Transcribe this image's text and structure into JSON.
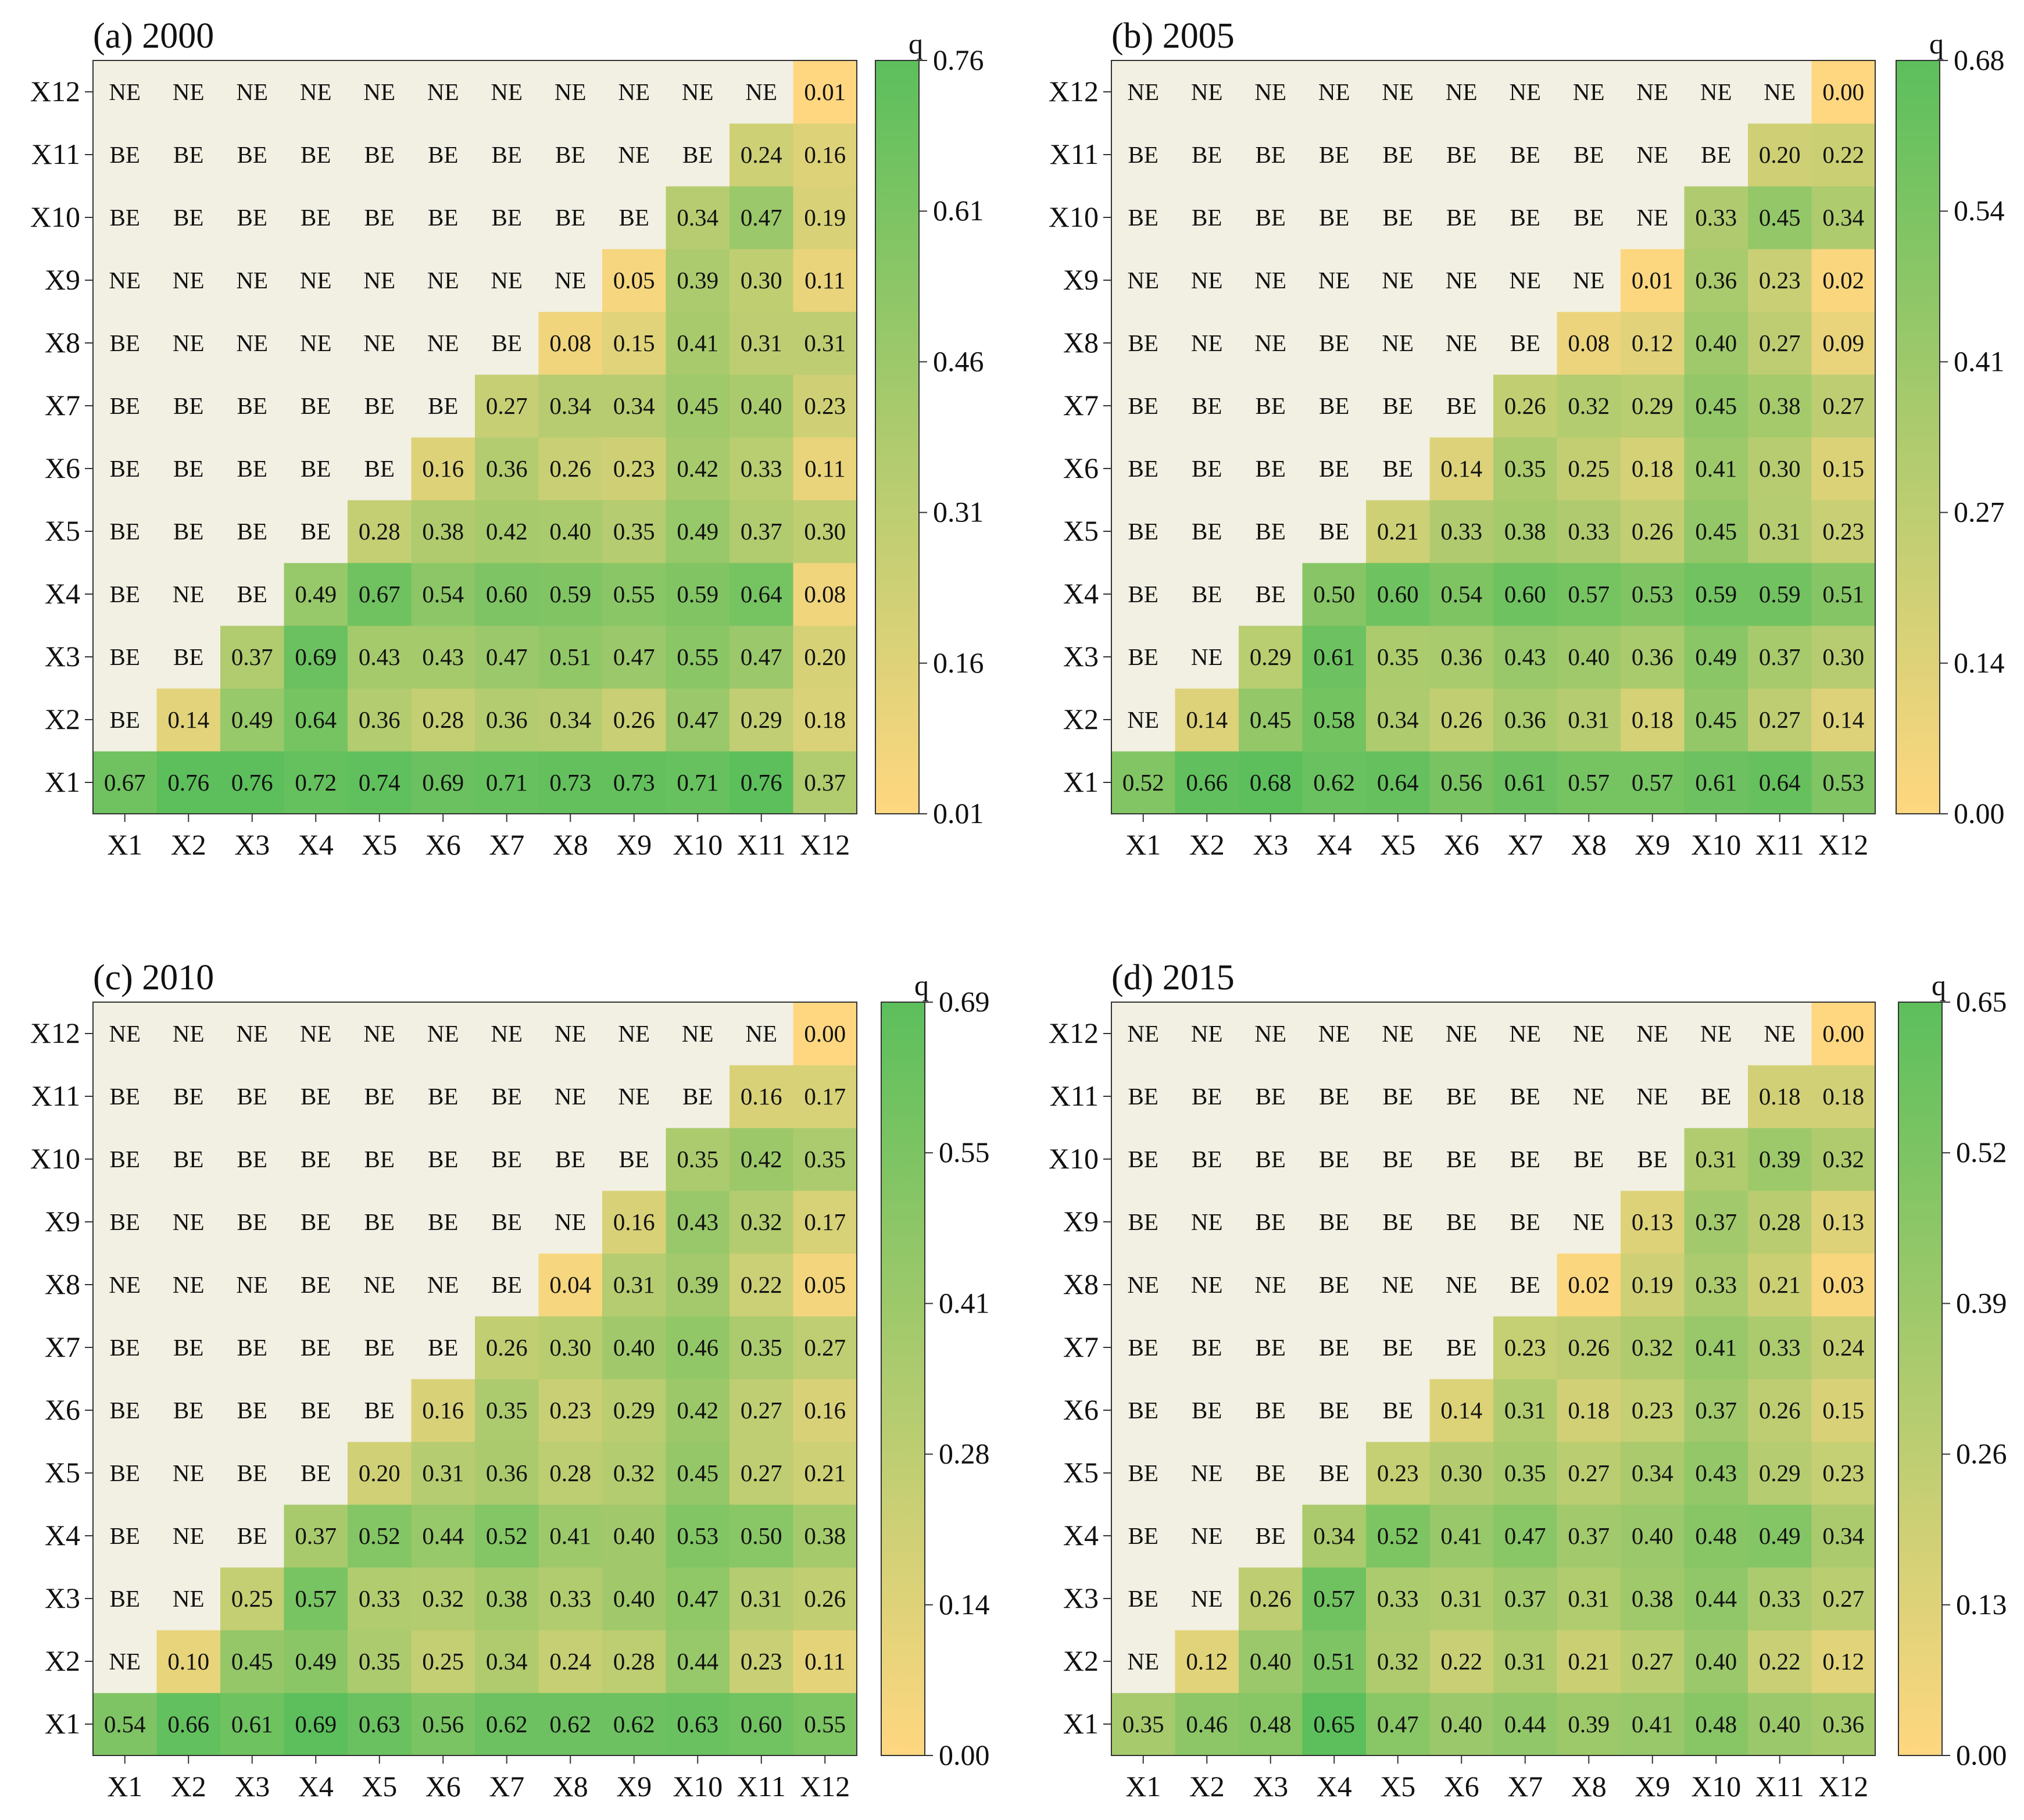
{
  "colorbar_label": "q",
  "colors": {
    "low": "#ffd780",
    "high": "#5cbf5c",
    "background": "#f2f0e3",
    "text": "#111111"
  },
  "chart_data": [
    {
      "type": "heatmap",
      "title": "(a) 2000",
      "x_categories": [
        "X1",
        "X2",
        "X3",
        "X4",
        "X5",
        "X6",
        "X7",
        "X8",
        "X9",
        "X10",
        "X11",
        "X12"
      ],
      "y_categories": [
        "X1",
        "X2",
        "X3",
        "X4",
        "X5",
        "X6",
        "X7",
        "X8",
        "X9",
        "X10",
        "X11",
        "X12"
      ],
      "colorbar": {
        "label": "q",
        "min": 0.01,
        "max": 0.76,
        "ticks": [
          "0.01",
          "0.16",
          "0.31",
          "0.46",
          "0.61",
          "0.76"
        ]
      },
      "rows": [
        [
          "0.67",
          "0.76",
          "0.76",
          "0.72",
          "0.74",
          "0.69",
          "0.71",
          "0.73",
          "0.73",
          "0.71",
          "0.76",
          "0.37"
        ],
        [
          "BE",
          "0.14",
          "0.49",
          "0.64",
          "0.36",
          "0.28",
          "0.36",
          "0.34",
          "0.26",
          "0.47",
          "0.29",
          "0.18"
        ],
        [
          "BE",
          "BE",
          "0.37",
          "0.69",
          "0.43",
          "0.43",
          "0.47",
          "0.51",
          "0.47",
          "0.55",
          "0.47",
          "0.20"
        ],
        [
          "BE",
          "NE",
          "BE",
          "0.49",
          "0.67",
          "0.54",
          "0.60",
          "0.59",
          "0.55",
          "0.59",
          "0.64",
          "0.08"
        ],
        [
          "BE",
          "BE",
          "BE",
          "BE",
          "0.28",
          "0.38",
          "0.42",
          "0.40",
          "0.35",
          "0.49",
          "0.37",
          "0.30"
        ],
        [
          "BE",
          "BE",
          "BE",
          "BE",
          "BE",
          "0.16",
          "0.36",
          "0.26",
          "0.23",
          "0.42",
          "0.33",
          "0.11"
        ],
        [
          "BE",
          "BE",
          "BE",
          "BE",
          "BE",
          "BE",
          "0.27",
          "0.34",
          "0.34",
          "0.45",
          "0.40",
          "0.23"
        ],
        [
          "BE",
          "NE",
          "NE",
          "NE",
          "NE",
          "NE",
          "BE",
          "0.08",
          "0.15",
          "0.41",
          "0.31",
          "0.31"
        ],
        [
          "NE",
          "NE",
          "NE",
          "NE",
          "NE",
          "NE",
          "NE",
          "NE",
          "0.05",
          "0.39",
          "0.30",
          "0.11"
        ],
        [
          "BE",
          "BE",
          "BE",
          "BE",
          "BE",
          "BE",
          "BE",
          "BE",
          "BE",
          "0.34",
          "0.47",
          "0.19"
        ],
        [
          "BE",
          "BE",
          "BE",
          "BE",
          "BE",
          "BE",
          "BE",
          "BE",
          "NE",
          "BE",
          "0.24",
          "0.16"
        ],
        [
          "NE",
          "NE",
          "NE",
          "NE",
          "NE",
          "NE",
          "NE",
          "NE",
          "NE",
          "NE",
          "NE",
          "0.01"
        ]
      ]
    },
    {
      "type": "heatmap",
      "title": "(b) 2005",
      "x_categories": [
        "X1",
        "X2",
        "X3",
        "X4",
        "X5",
        "X6",
        "X7",
        "X8",
        "X9",
        "X10",
        "X11",
        "X12"
      ],
      "y_categories": [
        "X1",
        "X2",
        "X3",
        "X4",
        "X5",
        "X6",
        "X7",
        "X8",
        "X9",
        "X10",
        "X11",
        "X12"
      ],
      "colorbar": {
        "label": "q",
        "min": 0.0,
        "max": 0.68,
        "ticks": [
          "0.00",
          "0.14",
          "0.27",
          "0.41",
          "0.54",
          "0.68"
        ]
      },
      "rows": [
        [
          "0.52",
          "0.66",
          "0.68",
          "0.62",
          "0.64",
          "0.56",
          "0.61",
          "0.57",
          "0.57",
          "0.61",
          "0.64",
          "0.53"
        ],
        [
          "NE",
          "0.14",
          "0.45",
          "0.58",
          "0.34",
          "0.26",
          "0.36",
          "0.31",
          "0.18",
          "0.45",
          "0.27",
          "0.14"
        ],
        [
          "BE",
          "NE",
          "0.29",
          "0.61",
          "0.35",
          "0.36",
          "0.43",
          "0.40",
          "0.36",
          "0.49",
          "0.37",
          "0.30"
        ],
        [
          "BE",
          "BE",
          "BE",
          "0.50",
          "0.60",
          "0.54",
          "0.60",
          "0.57",
          "0.53",
          "0.59",
          "0.59",
          "0.51"
        ],
        [
          "BE",
          "BE",
          "BE",
          "BE",
          "0.21",
          "0.33",
          "0.38",
          "0.33",
          "0.26",
          "0.45",
          "0.31",
          "0.23"
        ],
        [
          "BE",
          "BE",
          "BE",
          "BE",
          "BE",
          "0.14",
          "0.35",
          "0.25",
          "0.18",
          "0.41",
          "0.30",
          "0.15"
        ],
        [
          "BE",
          "BE",
          "BE",
          "BE",
          "BE",
          "BE",
          "0.26",
          "0.32",
          "0.29",
          "0.45",
          "0.38",
          "0.27"
        ],
        [
          "BE",
          "NE",
          "NE",
          "BE",
          "NE",
          "NE",
          "BE",
          "0.08",
          "0.12",
          "0.40",
          "0.27",
          "0.09"
        ],
        [
          "NE",
          "NE",
          "NE",
          "NE",
          "NE",
          "NE",
          "NE",
          "NE",
          "0.01",
          "0.36",
          "0.23",
          "0.02"
        ],
        [
          "BE",
          "BE",
          "BE",
          "BE",
          "BE",
          "BE",
          "BE",
          "BE",
          "NE",
          "0.33",
          "0.45",
          "0.34"
        ],
        [
          "BE",
          "BE",
          "BE",
          "BE",
          "BE",
          "BE",
          "BE",
          "BE",
          "NE",
          "BE",
          "0.20",
          "0.22"
        ],
        [
          "NE",
          "NE",
          "NE",
          "NE",
          "NE",
          "NE",
          "NE",
          "NE",
          "NE",
          "NE",
          "NE",
          "0.00"
        ]
      ]
    },
    {
      "type": "heatmap",
      "title": "(c) 2010",
      "x_categories": [
        "X1",
        "X2",
        "X3",
        "X4",
        "X5",
        "X6",
        "X7",
        "X8",
        "X9",
        "X10",
        "X11",
        "X12"
      ],
      "y_categories": [
        "X1",
        "X2",
        "X3",
        "X4",
        "X5",
        "X6",
        "X7",
        "X8",
        "X9",
        "X10",
        "X11",
        "X12"
      ],
      "colorbar": {
        "label": "q",
        "min": 0.0,
        "max": 0.69,
        "ticks": [
          "0.00",
          "0.14",
          "0.28",
          "0.41",
          "0.55",
          "0.69"
        ]
      },
      "rows": [
        [
          "0.54",
          "0.66",
          "0.61",
          "0.69",
          "0.63",
          "0.56",
          "0.62",
          "0.62",
          "0.62",
          "0.63",
          "0.60",
          "0.55"
        ],
        [
          "NE",
          "0.10",
          "0.45",
          "0.49",
          "0.35",
          "0.25",
          "0.34",
          "0.24",
          "0.28",
          "0.44",
          "0.23",
          "0.11"
        ],
        [
          "BE",
          "NE",
          "0.25",
          "0.57",
          "0.33",
          "0.32",
          "0.38",
          "0.33",
          "0.40",
          "0.47",
          "0.31",
          "0.26"
        ],
        [
          "BE",
          "NE",
          "BE",
          "0.37",
          "0.52",
          "0.44",
          "0.52",
          "0.41",
          "0.40",
          "0.53",
          "0.50",
          "0.38"
        ],
        [
          "BE",
          "NE",
          "BE",
          "BE",
          "0.20",
          "0.31",
          "0.36",
          "0.28",
          "0.32",
          "0.45",
          "0.27",
          "0.21"
        ],
        [
          "BE",
          "BE",
          "BE",
          "BE",
          "BE",
          "0.16",
          "0.35",
          "0.23",
          "0.29",
          "0.42",
          "0.27",
          "0.16"
        ],
        [
          "BE",
          "BE",
          "BE",
          "BE",
          "BE",
          "BE",
          "0.26",
          "0.30",
          "0.40",
          "0.46",
          "0.35",
          "0.27"
        ],
        [
          "NE",
          "NE",
          "NE",
          "BE",
          "NE",
          "NE",
          "BE",
          "0.04",
          "0.31",
          "0.39",
          "0.22",
          "0.05"
        ],
        [
          "BE",
          "NE",
          "BE",
          "BE",
          "BE",
          "BE",
          "BE",
          "NE",
          "0.16",
          "0.43",
          "0.32",
          "0.17"
        ],
        [
          "BE",
          "BE",
          "BE",
          "BE",
          "BE",
          "BE",
          "BE",
          "BE",
          "BE",
          "0.35",
          "0.42",
          "0.35"
        ],
        [
          "BE",
          "BE",
          "BE",
          "BE",
          "BE",
          "BE",
          "BE",
          "NE",
          "NE",
          "BE",
          "0.16",
          "0.17"
        ],
        [
          "NE",
          "NE",
          "NE",
          "NE",
          "NE",
          "NE",
          "NE",
          "NE",
          "NE",
          "NE",
          "NE",
          "0.00"
        ]
      ]
    },
    {
      "type": "heatmap",
      "title": "(d) 2015",
      "x_categories": [
        "X1",
        "X2",
        "X3",
        "X4",
        "X5",
        "X6",
        "X7",
        "X8",
        "X9",
        "X10",
        "X11",
        "X12"
      ],
      "y_categories": [
        "X1",
        "X2",
        "X3",
        "X4",
        "X5",
        "X6",
        "X7",
        "X8",
        "X9",
        "X10",
        "X11",
        "X12"
      ],
      "colorbar": {
        "label": "q",
        "min": 0.0,
        "max": 0.65,
        "ticks": [
          "0.00",
          "0.13",
          "0.26",
          "0.39",
          "0.52",
          "0.65"
        ]
      },
      "rows": [
        [
          "0.35",
          "0.46",
          "0.48",
          "0.65",
          "0.47",
          "0.40",
          "0.44",
          "0.39",
          "0.41",
          "0.48",
          "0.40",
          "0.36"
        ],
        [
          "NE",
          "0.12",
          "0.40",
          "0.51",
          "0.32",
          "0.22",
          "0.31",
          "0.21",
          "0.27",
          "0.40",
          "0.22",
          "0.12"
        ],
        [
          "BE",
          "NE",
          "0.26",
          "0.57",
          "0.33",
          "0.31",
          "0.37",
          "0.31",
          "0.38",
          "0.44",
          "0.33",
          "0.27"
        ],
        [
          "BE",
          "NE",
          "BE",
          "0.34",
          "0.52",
          "0.41",
          "0.47",
          "0.37",
          "0.40",
          "0.48",
          "0.49",
          "0.34"
        ],
        [
          "BE",
          "NE",
          "BE",
          "BE",
          "0.23",
          "0.30",
          "0.35",
          "0.27",
          "0.34",
          "0.43",
          "0.29",
          "0.23"
        ],
        [
          "BE",
          "BE",
          "BE",
          "BE",
          "BE",
          "0.14",
          "0.31",
          "0.18",
          "0.23",
          "0.37",
          "0.26",
          "0.15"
        ],
        [
          "BE",
          "BE",
          "BE",
          "BE",
          "BE",
          "BE",
          "0.23",
          "0.26",
          "0.32",
          "0.41",
          "0.33",
          "0.24"
        ],
        [
          "NE",
          "NE",
          "NE",
          "BE",
          "NE",
          "NE",
          "BE",
          "0.02",
          "0.19",
          "0.33",
          "0.21",
          "0.03"
        ],
        [
          "BE",
          "NE",
          "BE",
          "BE",
          "BE",
          "BE",
          "BE",
          "NE",
          "0.13",
          "0.37",
          "0.28",
          "0.13"
        ],
        [
          "BE",
          "BE",
          "BE",
          "BE",
          "BE",
          "BE",
          "BE",
          "BE",
          "BE",
          "0.31",
          "0.39",
          "0.32"
        ],
        [
          "BE",
          "BE",
          "BE",
          "BE",
          "BE",
          "BE",
          "BE",
          "NE",
          "NE",
          "BE",
          "0.18",
          "0.18"
        ],
        [
          "NE",
          "NE",
          "NE",
          "NE",
          "NE",
          "NE",
          "NE",
          "NE",
          "NE",
          "NE",
          "NE",
          "0.00"
        ]
      ]
    }
  ]
}
